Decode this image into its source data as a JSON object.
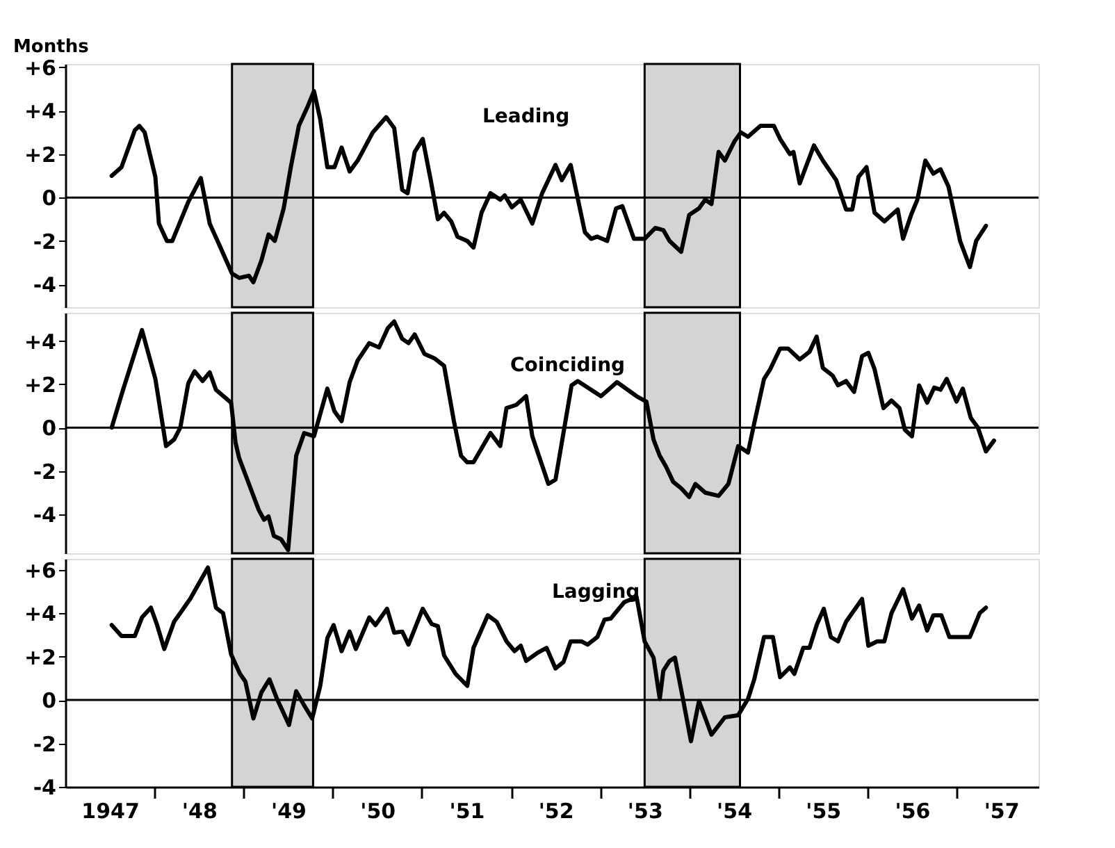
{
  "chart_data": [
    {
      "type": "line",
      "ylabel": "Months",
      "xlim": [
        1946.5,
        1957.42
      ],
      "ylim": [
        -5.05,
        6.15
      ],
      "yticks": [
        {
          "value": 6,
          "label": "+6"
        },
        {
          "value": 4,
          "label": "+4"
        },
        {
          "value": 2,
          "label": "+2"
        },
        0,
        -2,
        -4
      ],
      "tick_labels": "y",
      "grid": false,
      "marker": "none",
      "line_style": "solid",
      "bands": [
        {
          "axis": "x",
          "from": 1948.37,
          "to": 1949.28,
          "color": "#d4d4d4"
        },
        {
          "axis": "x",
          "from": 1953.0,
          "to": 1954.07,
          "color": "#d4d4d4"
        }
      ],
      "ref_lines": [
        {
          "axis": "y",
          "value": 0
        }
      ],
      "series": [
        {
          "name": "Leading",
          "color": "#000000",
          "x": [
            1947.02,
            1947.13,
            1947.28,
            1947.33,
            1947.39,
            1947.51,
            1947.55,
            1947.64,
            1947.7,
            1947.88,
            1948.02,
            1948.12,
            1948.23,
            1948.37,
            1948.45,
            1948.56,
            1948.61,
            1948.7,
            1948.78,
            1948.85,
            1948.95,
            1949.03,
            1949.12,
            1949.22,
            1949.29,
            1949.36,
            1949.44,
            1949.52,
            1949.6,
            1949.69,
            1949.78,
            1949.95,
            1950.1,
            1950.19,
            1950.28,
            1950.34,
            1950.42,
            1950.51,
            1950.6,
            1950.68,
            1950.75,
            1950.83,
            1950.9,
            1951.01,
            1951.08,
            1951.17,
            1951.27,
            1951.38,
            1951.43,
            1951.51,
            1951.61,
            1951.74,
            1951.85,
            1952.0,
            1952.07,
            1952.17,
            1952.33,
            1952.4,
            1952.47,
            1952.58,
            1952.68,
            1952.75,
            1952.88,
            1953.0,
            1953.12,
            1953.21,
            1953.28,
            1953.41,
            1953.5,
            1953.61,
            1953.68,
            1953.75,
            1953.83,
            1953.9,
            1954.01,
            1954.08,
            1954.16,
            1954.3,
            1954.45,
            1954.52,
            1954.63,
            1954.67,
            1954.74,
            1954.9,
            1955.0,
            1955.15,
            1955.26,
            1955.33,
            1955.4,
            1955.49,
            1955.58,
            1955.69,
            1955.84,
            1955.9,
            1955.99,
            1956.06,
            1956.15,
            1956.24,
            1956.32,
            1956.41,
            1956.54,
            1956.65,
            1956.72,
            1956.83
          ],
          "values": [
            1.0,
            1.4,
            3.1,
            3.3,
            3.0,
            0.95,
            -1.2,
            -2.0,
            -2.0,
            -0.2,
            0.9,
            -1.2,
            -2.2,
            -3.5,
            -3.7,
            -3.6,
            -3.9,
            -2.9,
            -1.7,
            -2.0,
            -0.5,
            1.4,
            3.3,
            4.2,
            4.9,
            3.6,
            1.4,
            1.4,
            2.3,
            1.2,
            1.7,
            3.0,
            3.7,
            3.2,
            0.35,
            0.2,
            2.1,
            2.7,
            0.8,
            -1.0,
            -0.7,
            -1.1,
            -1.8,
            -2.0,
            -2.3,
            -0.7,
            0.2,
            -0.1,
            0.1,
            -0.45,
            -0.1,
            -1.2,
            0.2,
            1.5,
            0.8,
            1.5,
            -1.6,
            -1.9,
            -1.8,
            -2.0,
            -0.5,
            -0.4,
            -1.9,
            -1.9,
            -1.4,
            -1.5,
            -2.0,
            -2.5,
            -0.8,
            -0.5,
            -0.1,
            -0.3,
            2.1,
            1.7,
            2.6,
            3.0,
            2.8,
            3.3,
            3.3,
            2.7,
            2.0,
            2.1,
            0.65,
            2.4,
            1.7,
            0.8,
            -0.55,
            -0.55,
            0.95,
            1.4,
            -0.7,
            -1.1,
            -0.55,
            -1.9,
            -0.8,
            -0.1,
            1.7,
            1.1,
            1.3,
            0.5,
            -2.0,
            -3.2,
            -2.0,
            -1.3
          ]
        }
      ]
    },
    {
      "type": "line",
      "xlim": [
        1946.5,
        1957.42
      ],
      "ylim": [
        -5.8,
        5.3
      ],
      "yticks": [
        {
          "value": 4,
          "label": "+4"
        },
        {
          "value": 2,
          "label": "+2"
        },
        0,
        -2,
        -4
      ],
      "tick_labels": "y",
      "grid": false,
      "marker": "none",
      "line_style": "solid",
      "bands": [
        {
          "axis": "x",
          "from": 1948.37,
          "to": 1949.28,
          "color": "#d4d4d4"
        },
        {
          "axis": "x",
          "from": 1953.0,
          "to": 1954.07,
          "color": "#d4d4d4"
        }
      ],
      "ref_lines": [
        {
          "axis": "y",
          "value": 0
        }
      ],
      "series": [
        {
          "name": "Coinciding",
          "color": "#000000",
          "x": [
            1947.02,
            1947.14,
            1947.36,
            1947.51,
            1947.63,
            1947.72,
            1947.79,
            1947.88,
            1947.95,
            1948.04,
            1948.12,
            1948.19,
            1948.36,
            1948.41,
            1948.45,
            1948.56,
            1948.67,
            1948.73,
            1948.78,
            1948.84,
            1948.92,
            1949.0,
            1949.09,
            1949.18,
            1949.29,
            1949.44,
            1949.52,
            1949.6,
            1949.69,
            1949.78,
            1949.91,
            1950.02,
            1950.12,
            1950.19,
            1950.28,
            1950.35,
            1950.42,
            1950.53,
            1950.64,
            1950.75,
            1950.86,
            1950.94,
            1951.01,
            1951.08,
            1951.27,
            1951.38,
            1951.45,
            1951.56,
            1951.67,
            1951.74,
            1951.92,
            1952.0,
            1952.18,
            1952.25,
            1952.51,
            1952.69,
            1952.91,
            1953.02,
            1953.1,
            1953.17,
            1953.24,
            1953.32,
            1953.41,
            1953.5,
            1953.57,
            1953.68,
            1953.83,
            1953.94,
            1954.05,
            1954.16,
            1954.23,
            1954.34,
            1954.41,
            1954.52,
            1954.61,
            1954.74,
            1954.85,
            1954.93,
            1955.0,
            1955.11,
            1955.17,
            1955.26,
            1955.35,
            1955.44,
            1955.51,
            1955.58,
            1955.68,
            1955.77,
            1955.86,
            1955.92,
            1956.0,
            1956.08,
            1956.17,
            1956.25,
            1956.32,
            1956.39,
            1956.5,
            1956.57,
            1956.66,
            1956.74,
            1956.83,
            1956.92
          ],
          "values": [
            0,
            1.65,
            4.5,
            2.25,
            -0.85,
            -0.55,
            0,
            2.05,
            2.6,
            2.15,
            2.55,
            1.75,
            1.15,
            -0.7,
            -1.4,
            -2.6,
            -3.8,
            -4.25,
            -4.1,
            -5.0,
            -5.15,
            -5.65,
            -1.3,
            -0.25,
            -0.4,
            1.8,
            0.75,
            0.3,
            2.1,
            3.1,
            3.9,
            3.7,
            4.6,
            4.9,
            4.1,
            3.9,
            4.3,
            3.4,
            3.2,
            2.85,
            0.3,
            -1.3,
            -1.6,
            -1.6,
            -0.25,
            -0.85,
            0.9,
            1.05,
            1.45,
            -0.4,
            -2.6,
            -2.4,
            1.95,
            2.15,
            1.45,
            2.1,
            1.45,
            1.2,
            -0.55,
            -1.3,
            -1.8,
            -2.5,
            -2.8,
            -3.2,
            -2.6,
            -3.0,
            -3.15,
            -2.6,
            -0.85,
            -1.15,
            0.2,
            2.25,
            2.7,
            3.65,
            3.65,
            3.15,
            3.5,
            4.2,
            2.75,
            2.4,
            1.95,
            2.15,
            1.65,
            3.3,
            3.45,
            2.7,
            0.9,
            1.25,
            0.9,
            -0.1,
            -0.4,
            1.95,
            1.15,
            1.85,
            1.75,
            2.25,
            1.2,
            1.8,
            0.45,
            0,
            -1.1,
            -0.6
          ]
        }
      ]
    },
    {
      "type": "line",
      "xlim": [
        1946.5,
        1957.42
      ],
      "ylim": [
        -4,
        6.5
      ],
      "yticks": [
        {
          "value": 6,
          "label": "+6"
        },
        {
          "value": 4,
          "label": "+4"
        },
        {
          "value": 2,
          "label": "+2"
        },
        0,
        -2,
        -4
      ],
      "xticks": [
        1947,
        {
          "value": 1947.5,
          "label": null
        },
        {
          "value": 1948,
          "label": "'48"
        },
        {
          "value": 1948.5,
          "label": null
        },
        {
          "value": 1949,
          "label": "'49"
        },
        {
          "value": 1949.5,
          "label": null
        },
        {
          "value": 1950,
          "label": "'50"
        },
        {
          "value": 1950.5,
          "label": null
        },
        {
          "value": 1951,
          "label": "'51"
        },
        {
          "value": 1951.5,
          "label": null
        },
        {
          "value": 1952,
          "label": "'52"
        },
        {
          "value": 1952.5,
          "label": null
        },
        {
          "value": 1953,
          "label": "'53"
        },
        {
          "value": 1953.5,
          "label": null
        },
        {
          "value": 1954,
          "label": "'54"
        },
        {
          "value": 1954.5,
          "label": null
        },
        {
          "value": 1955,
          "label": "'55"
        },
        {
          "value": 1955.5,
          "label": null
        },
        {
          "value": 1956,
          "label": "'56"
        },
        {
          "value": 1956.5,
          "label": null
        },
        {
          "value": 1957,
          "label": "'57"
        }
      ],
      "grid": false,
      "marker": "none",
      "line_style": "solid",
      "bands": [
        {
          "axis": "x",
          "from": 1948.37,
          "to": 1949.28,
          "color": "#d4d4d4"
        },
        {
          "axis": "x",
          "from": 1953.0,
          "to": 1954.07,
          "color": "#d4d4d4"
        }
      ],
      "ref_lines": [
        {
          "axis": "y",
          "value": 0
        }
      ],
      "series": [
        {
          "name": "Lagging",
          "color": "#000000",
          "x": [
            1947.02,
            1947.13,
            1947.28,
            1947.36,
            1947.46,
            1947.53,
            1947.61,
            1947.72,
            1947.9,
            1948.1,
            1948.19,
            1948.27,
            1948.36,
            1948.46,
            1948.52,
            1948.61,
            1948.7,
            1948.79,
            1948.87,
            1949.01,
            1949.09,
            1949.18,
            1949.27,
            1949.36,
            1949.44,
            1949.51,
            1949.6,
            1949.69,
            1949.76,
            1949.91,
            1949.98,
            1950.11,
            1950.19,
            1950.28,
            1950.35,
            1950.51,
            1950.61,
            1950.68,
            1950.75,
            1950.88,
            1951.01,
            1951.08,
            1951.24,
            1951.34,
            1951.45,
            1951.54,
            1951.61,
            1951.67,
            1951.81,
            1951.9,
            1952.0,
            1952.09,
            1952.17,
            1952.29,
            1952.36,
            1952.47,
            1952.55,
            1952.62,
            1952.77,
            1952.91,
            1953.0,
            1953.1,
            1953.17,
            1953.21,
            1953.28,
            1953.34,
            1953.43,
            1953.52,
            1953.61,
            1953.75,
            1953.9,
            1954.05,
            1954.16,
            1954.23,
            1954.34,
            1954.44,
            1954.52,
            1954.63,
            1954.68,
            1954.78,
            1954.85,
            1954.93,
            1955.01,
            1955.09,
            1955.17,
            1955.26,
            1955.44,
            1955.51,
            1955.61,
            1955.69,
            1955.77,
            1955.9,
            1956.0,
            1956.08,
            1956.17,
            1956.24,
            1956.33,
            1956.42,
            1956.65,
            1956.76,
            1956.83
          ],
          "values": [
            3.45,
            2.95,
            2.95,
            3.8,
            4.25,
            3.45,
            2.35,
            3.6,
            4.65,
            6.1,
            4.25,
            4.0,
            2.1,
            1.2,
            0.85,
            -0.85,
            0.35,
            0.95,
            0.1,
            -1.15,
            0.4,
            -0.25,
            -0.85,
            0.65,
            2.85,
            3.45,
            2.25,
            3.15,
            2.35,
            3.8,
            3.45,
            4.2,
            3.1,
            3.15,
            2.55,
            4.2,
            3.5,
            3.4,
            2.05,
            1.2,
            0.65,
            2.4,
            3.9,
            3.6,
            2.7,
            2.25,
            2.5,
            1.8,
            2.2,
            2.4,
            1.45,
            1.75,
            2.7,
            2.7,
            2.55,
            2.9,
            3.7,
            3.75,
            4.5,
            4.75,
            2.7,
            1.95,
            0.05,
            1.35,
            1.8,
            1.95,
            0.05,
            -1.9,
            -0.05,
            -1.6,
            -0.8,
            -0.7,
            0.05,
            0.95,
            2.9,
            2.9,
            1.05,
            1.5,
            1.2,
            2.4,
            2.4,
            3.45,
            4.2,
            2.9,
            2.7,
            3.6,
            4.65,
            2.5,
            2.7,
            2.7,
            4.0,
            5.1,
            3.75,
            4.35,
            3.2,
            3.9,
            3.9,
            2.9,
            2.9,
            4.0,
            4.25
          ]
        }
      ]
    }
  ]
}
